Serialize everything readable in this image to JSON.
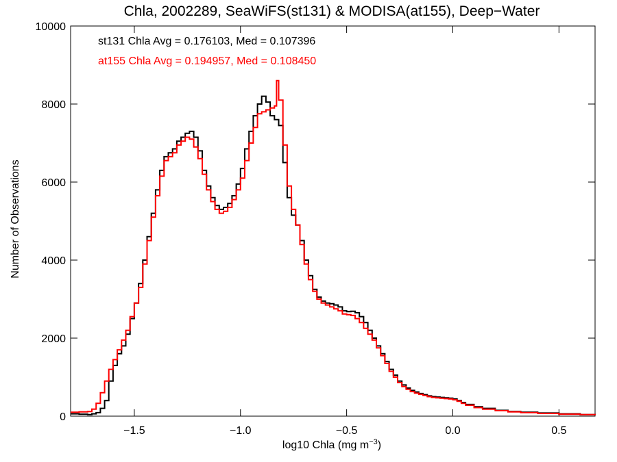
{
  "chart_data": {
    "type": "line",
    "title": "Chla, 2002289, SeaWiFS(st131) & MODISA(at155), Deep−Water",
    "xlabel_main": "log10 Chla (mg m",
    "xlabel_sup": "−3",
    "xlabel_end": ")",
    "ylabel": "Number of Observations",
    "xlim": [
      -1.8,
      0.67
    ],
    "ylim": [
      0,
      10000
    ],
    "xticks": [
      {
        "value": -1.5,
        "label": "−1.5"
      },
      {
        "value": -1.0,
        "label": "−1.0"
      },
      {
        "value": -0.5,
        "label": "−0.5"
      },
      {
        "value": 0.0,
        "label": "0.0"
      },
      {
        "value": 0.5,
        "label": "0.5"
      }
    ],
    "yticks": [
      {
        "value": 0,
        "label": "0"
      },
      {
        "value": 2000,
        "label": "2000"
      },
      {
        "value": 4000,
        "label": "4000"
      },
      {
        "value": 6000,
        "label": "6000"
      },
      {
        "value": 8000,
        "label": "8000"
      },
      {
        "value": 10000,
        "label": "10000"
      }
    ],
    "series": [
      {
        "name": "st131 Chla Avg = 0.176103, Med = 0.107396",
        "color": "#000000",
        "points": [
          [
            -1.8,
            60
          ],
          [
            -1.76,
            50
          ],
          [
            -1.72,
            40
          ],
          [
            -1.7,
            60
          ],
          [
            -1.68,
            90
          ],
          [
            -1.66,
            200
          ],
          [
            -1.64,
            400
          ],
          [
            -1.62,
            900
          ],
          [
            -1.6,
            1300
          ],
          [
            -1.58,
            1600
          ],
          [
            -1.56,
            1800
          ],
          [
            -1.54,
            2100
          ],
          [
            -1.52,
            2500
          ],
          [
            -1.5,
            2900
          ],
          [
            -1.48,
            3400
          ],
          [
            -1.46,
            4000
          ],
          [
            -1.44,
            4600
          ],
          [
            -1.42,
            5200
          ],
          [
            -1.4,
            5800
          ],
          [
            -1.38,
            6300
          ],
          [
            -1.36,
            6650
          ],
          [
            -1.34,
            6750
          ],
          [
            -1.32,
            6850
          ],
          [
            -1.3,
            7050
          ],
          [
            -1.28,
            7150
          ],
          [
            -1.26,
            7250
          ],
          [
            -1.24,
            7300
          ],
          [
            -1.22,
            7150
          ],
          [
            -1.2,
            6800
          ],
          [
            -1.18,
            6300
          ],
          [
            -1.16,
            5900
          ],
          [
            -1.14,
            5600
          ],
          [
            -1.12,
            5400
          ],
          [
            -1.1,
            5300
          ],
          [
            -1.08,
            5350
          ],
          [
            -1.06,
            5450
          ],
          [
            -1.04,
            5650
          ],
          [
            -1.02,
            5950
          ],
          [
            -1.0,
            6350
          ],
          [
            -0.98,
            6850
          ],
          [
            -0.96,
            7300
          ],
          [
            -0.94,
            7700
          ],
          [
            -0.92,
            8000
          ],
          [
            -0.9,
            8200
          ],
          [
            -0.88,
            8050
          ],
          [
            -0.86,
            7700
          ],
          [
            -0.84,
            7600
          ],
          [
            -0.82,
            7450
          ],
          [
            -0.8,
            6500
          ],
          [
            -0.78,
            5600
          ],
          [
            -0.76,
            5150
          ],
          [
            -0.74,
            4900
          ],
          [
            -0.72,
            4500
          ],
          [
            -0.7,
            4000
          ],
          [
            -0.68,
            3600
          ],
          [
            -0.66,
            3250
          ],
          [
            -0.64,
            3050
          ],
          [
            -0.62,
            2950
          ],
          [
            -0.6,
            2900
          ],
          [
            -0.58,
            2880
          ],
          [
            -0.56,
            2850
          ],
          [
            -0.54,
            2800
          ],
          [
            -0.52,
            2700
          ],
          [
            -0.5,
            2680
          ],
          [
            -0.48,
            2690
          ],
          [
            -0.46,
            2650
          ],
          [
            -0.44,
            2550
          ],
          [
            -0.42,
            2400
          ],
          [
            -0.4,
            2200
          ],
          [
            -0.38,
            2000
          ],
          [
            -0.36,
            1800
          ],
          [
            -0.34,
            1600
          ],
          [
            -0.32,
            1400
          ],
          [
            -0.3,
            1200
          ],
          [
            -0.28,
            1050
          ],
          [
            -0.26,
            900
          ],
          [
            -0.24,
            800
          ],
          [
            -0.22,
            720
          ],
          [
            -0.2,
            660
          ],
          [
            -0.18,
            620
          ],
          [
            -0.16,
            580
          ],
          [
            -0.14,
            550
          ],
          [
            -0.12,
            520
          ],
          [
            -0.1,
            500
          ],
          [
            -0.08,
            490
          ],
          [
            -0.06,
            480
          ],
          [
            -0.04,
            470
          ],
          [
            -0.02,
            460
          ],
          [
            0.0,
            440
          ],
          [
            0.02,
            400
          ],
          [
            0.04,
            350
          ],
          [
            0.06,
            300
          ],
          [
            0.1,
            240
          ],
          [
            0.14,
            200
          ],
          [
            0.2,
            150
          ],
          [
            0.26,
            120
          ],
          [
            0.32,
            100
          ],
          [
            0.4,
            80
          ],
          [
            0.5,
            60
          ],
          [
            0.6,
            40
          ],
          [
            0.67,
            30
          ]
        ]
      },
      {
        "name": "at155 Chla Avg = 0.194957, Med = 0.108450",
        "color": "#ff0000",
        "points": [
          [
            -1.8,
            100
          ],
          [
            -1.76,
            110
          ],
          [
            -1.72,
            120
          ],
          [
            -1.7,
            180
          ],
          [
            -1.68,
            330
          ],
          [
            -1.66,
            600
          ],
          [
            -1.64,
            900
          ],
          [
            -1.62,
            1200
          ],
          [
            -1.6,
            1450
          ],
          [
            -1.58,
            1700
          ],
          [
            -1.56,
            1950
          ],
          [
            -1.54,
            2200
          ],
          [
            -1.52,
            2550
          ],
          [
            -1.5,
            2900
          ],
          [
            -1.48,
            3300
          ],
          [
            -1.46,
            3900
          ],
          [
            -1.44,
            4500
          ],
          [
            -1.42,
            5100
          ],
          [
            -1.4,
            5650
          ],
          [
            -1.38,
            6150
          ],
          [
            -1.36,
            6550
          ],
          [
            -1.34,
            6650
          ],
          [
            -1.32,
            6750
          ],
          [
            -1.3,
            6950
          ],
          [
            -1.28,
            7050
          ],
          [
            -1.26,
            7150
          ],
          [
            -1.24,
            7100
          ],
          [
            -1.22,
            6900
          ],
          [
            -1.2,
            6600
          ],
          [
            -1.18,
            6200
          ],
          [
            -1.16,
            5800
          ],
          [
            -1.14,
            5500
          ],
          [
            -1.12,
            5300
          ],
          [
            -1.1,
            5200
          ],
          [
            -1.08,
            5250
          ],
          [
            -1.06,
            5350
          ],
          [
            -1.04,
            5550
          ],
          [
            -1.02,
            5800
          ],
          [
            -1.0,
            6100
          ],
          [
            -0.98,
            6550
          ],
          [
            -0.96,
            7000
          ],
          [
            -0.94,
            7400
          ],
          [
            -0.92,
            7750
          ],
          [
            -0.9,
            7800
          ],
          [
            -0.88,
            7850
          ],
          [
            -0.86,
            7900
          ],
          [
            -0.84,
            7950
          ],
          [
            -0.83,
            8600
          ],
          [
            -0.82,
            8100
          ],
          [
            -0.8,
            6950
          ],
          [
            -0.78,
            5900
          ],
          [
            -0.76,
            5300
          ],
          [
            -0.74,
            4900
          ],
          [
            -0.72,
            4400
          ],
          [
            -0.7,
            3900
          ],
          [
            -0.68,
            3500
          ],
          [
            -0.66,
            3200
          ],
          [
            -0.64,
            3000
          ],
          [
            -0.62,
            2900
          ],
          [
            -0.6,
            2850
          ],
          [
            -0.58,
            2800
          ],
          [
            -0.56,
            2750
          ],
          [
            -0.54,
            2700
          ],
          [
            -0.52,
            2620
          ],
          [
            -0.5,
            2600
          ],
          [
            -0.48,
            2580
          ],
          [
            -0.46,
            2500
          ],
          [
            -0.44,
            2400
          ],
          [
            -0.42,
            2250
          ],
          [
            -0.4,
            2100
          ],
          [
            -0.38,
            1950
          ],
          [
            -0.36,
            1750
          ],
          [
            -0.34,
            1550
          ],
          [
            -0.32,
            1350
          ],
          [
            -0.3,
            1150
          ],
          [
            -0.28,
            1000
          ],
          [
            -0.26,
            860
          ],
          [
            -0.24,
            760
          ],
          [
            -0.22,
            690
          ],
          [
            -0.2,
            630
          ],
          [
            -0.18,
            590
          ],
          [
            -0.16,
            560
          ],
          [
            -0.14,
            530
          ],
          [
            -0.12,
            500
          ],
          [
            -0.1,
            480
          ],
          [
            -0.08,
            470
          ],
          [
            -0.06,
            460
          ],
          [
            -0.04,
            450
          ],
          [
            -0.02,
            440
          ],
          [
            0.0,
            420
          ],
          [
            0.02,
            380
          ],
          [
            0.04,
            330
          ],
          [
            0.06,
            280
          ],
          [
            0.1,
            220
          ],
          [
            0.14,
            180
          ],
          [
            0.2,
            140
          ],
          [
            0.26,
            110
          ],
          [
            0.32,
            90
          ],
          [
            0.4,
            70
          ],
          [
            0.5,
            50
          ],
          [
            0.6,
            40
          ],
          [
            0.67,
            30
          ]
        ]
      }
    ]
  }
}
